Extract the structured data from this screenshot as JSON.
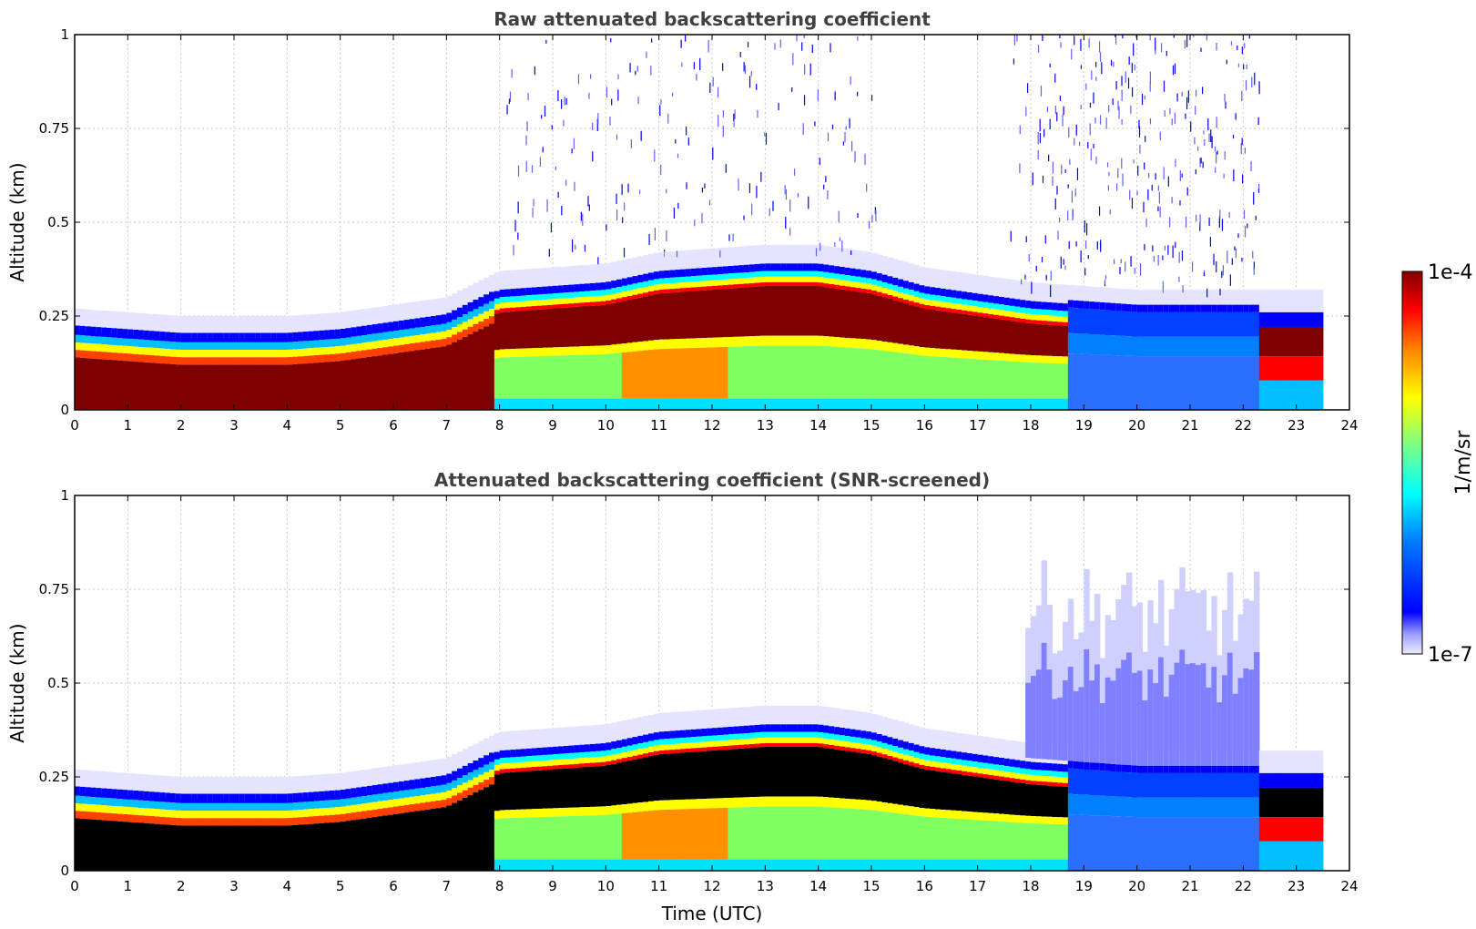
{
  "chart_data": [
    {
      "type": "heatmap",
      "title": "Raw attenuated backscattering coefficient",
      "xlabel": "",
      "ylabel": "Altitude (km)",
      "xlim": [
        0,
        24
      ],
      "ylim": [
        0,
        1
      ],
      "x_ticks": [
        "0",
        "1",
        "2",
        "3",
        "4",
        "5",
        "6",
        "7",
        "8",
        "9",
        "10",
        "11",
        "12",
        "13",
        "14",
        "15",
        "16",
        "17",
        "18",
        "19",
        "20",
        "21",
        "22",
        "23",
        "24"
      ],
      "y_ticks": [
        "0",
        "0.25",
        "0.5",
        "0.75",
        "1"
      ],
      "grid": true,
      "screened": false,
      "layer_top_km": [
        {
          "t": 0,
          "z": 0.21
        },
        {
          "t": 1,
          "z": 0.2
        },
        {
          "t": 2,
          "z": 0.19
        },
        {
          "t": 3,
          "z": 0.19
        },
        {
          "t": 4,
          "z": 0.19
        },
        {
          "t": 5,
          "z": 0.2
        },
        {
          "t": 6,
          "z": 0.22
        },
        {
          "t": 7,
          "z": 0.24
        },
        {
          "t": 8,
          "z": 0.31
        },
        {
          "t": 9,
          "z": 0.32
        },
        {
          "t": 10,
          "z": 0.33
        },
        {
          "t": 11,
          "z": 0.36
        },
        {
          "t": 12,
          "z": 0.37
        },
        {
          "t": 13,
          "z": 0.38
        },
        {
          "t": 14,
          "z": 0.38
        },
        {
          "t": 15,
          "z": 0.36
        },
        {
          "t": 16,
          "z": 0.32
        },
        {
          "t": 17,
          "z": 0.3
        },
        {
          "t": 18,
          "z": 0.28
        },
        {
          "t": 19,
          "z": 0.27
        },
        {
          "t": 20,
          "z": 0.26
        },
        {
          "t": 21,
          "z": 0.26
        },
        {
          "t": 22,
          "z": 0.26
        },
        {
          "t": 23,
          "z": 0.26
        },
        {
          "t": 23.5,
          "z": 0.26
        }
      ],
      "data_end_utc": 23.5,
      "noise_region_utc": [
        [
          8,
          15
        ],
        [
          17.5,
          22.3
        ]
      ]
    },
    {
      "type": "heatmap",
      "title": "Attenuated backscattering coefficient (SNR-screened)",
      "xlabel": "Time (UTC)",
      "ylabel": "Altitude (km)",
      "xlim": [
        0,
        24
      ],
      "ylim": [
        0,
        1
      ],
      "x_ticks": [
        "0",
        "1",
        "2",
        "3",
        "4",
        "5",
        "6",
        "7",
        "8",
        "9",
        "10",
        "11",
        "12",
        "13",
        "14",
        "15",
        "16",
        "17",
        "18",
        "19",
        "20",
        "21",
        "22",
        "23",
        "24"
      ],
      "y_ticks": [
        "0",
        "0.25",
        "0.5",
        "0.75",
        "1"
      ],
      "grid": true,
      "screened": true,
      "layer_top_km": [
        {
          "t": 0,
          "z": 0.21
        },
        {
          "t": 1,
          "z": 0.2
        },
        {
          "t": 2,
          "z": 0.19
        },
        {
          "t": 3,
          "z": 0.19
        },
        {
          "t": 4,
          "z": 0.19
        },
        {
          "t": 5,
          "z": 0.2
        },
        {
          "t": 6,
          "z": 0.22
        },
        {
          "t": 7,
          "z": 0.24
        },
        {
          "t": 8,
          "z": 0.31
        },
        {
          "t": 9,
          "z": 0.32
        },
        {
          "t": 10,
          "z": 0.33
        },
        {
          "t": 11,
          "z": 0.36
        },
        {
          "t": 12,
          "z": 0.37
        },
        {
          "t": 13,
          "z": 0.38
        },
        {
          "t": 14,
          "z": 0.38
        },
        {
          "t": 15,
          "z": 0.36
        },
        {
          "t": 16,
          "z": 0.32
        },
        {
          "t": 17,
          "z": 0.3
        },
        {
          "t": 18,
          "z": 0.28
        },
        {
          "t": 19,
          "z": 0.27
        },
        {
          "t": 20,
          "z": 0.26
        },
        {
          "t": 21,
          "z": 0.26
        },
        {
          "t": 22,
          "z": 0.26
        },
        {
          "t": 23,
          "z": 0.26
        },
        {
          "t": 23.5,
          "z": 0.26
        }
      ],
      "data_end_utc": 23.5
    }
  ],
  "colorbar": {
    "label": "1/m/sr",
    "max_label": "1e-4",
    "min_label": "1e-7",
    "colormap": "jet",
    "colors": [
      "#7f0000",
      "#ff0000",
      "#ff8000",
      "#ffff00",
      "#80ff80",
      "#00ffff",
      "#0080ff",
      "#0000ff",
      "#6060ff",
      "#e8e8ff"
    ]
  }
}
